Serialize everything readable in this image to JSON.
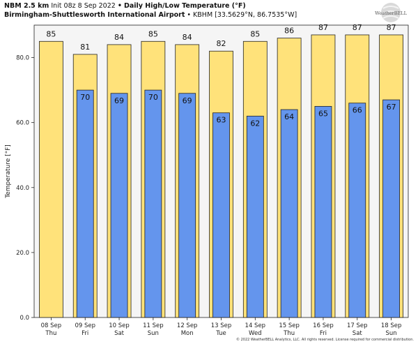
{
  "header": {
    "model": "NBM 2.5 km",
    "init": "Init 08z 8 Sep 2022",
    "bullet": "•",
    "product": "Daily High/Low Temperature (°F)",
    "location": "Birmingham-Shuttlesworth International Airport",
    "station": "KBHM [33.5629°N, 86.7535°W]"
  },
  "logo": {
    "text": "WeatherBELL"
  },
  "copyright": "© 2022 WeatherBELL Analytics, LLC. All rights reserved. License required for commercial distribution.",
  "colors": {
    "high_bar": "#ffe27a",
    "low_bar": "#6495ed",
    "plot_bg": "#f5f5f5",
    "bar_edge": "#222222"
  },
  "chart_data": {
    "type": "bar",
    "categories": [
      "08 Sep\nThu",
      "09 Sep\nFri",
      "10 Sep\nSat",
      "11 Sep\nSun",
      "12 Sep\nMon",
      "13 Sep\nTue",
      "14 Sep\nWed",
      "15 Sep\nThu",
      "16 Sep\nFri",
      "17 Sep\nSat",
      "18 Sep\nSun"
    ],
    "series": [
      {
        "name": "",
        "values": [
          85,
          81,
          84,
          85,
          84,
          82,
          85,
          86,
          87,
          87,
          87
        ]
      },
      {
        "name": "",
        "values": [
          null,
          70,
          69,
          70,
          69,
          63,
          62,
          64,
          65,
          66,
          67
        ]
      }
    ],
    "ylabel": "Temperature [°F]",
    "xlabel": "",
    "ylim": [
      0,
      90
    ],
    "yticks": [
      0.0,
      20.0,
      40.0,
      60.0,
      80.0
    ],
    "ytick_labels": [
      "0.0",
      "20.0",
      "40.0",
      "60.0",
      "80.0"
    ],
    "grid": false,
    "legend": "none"
  }
}
